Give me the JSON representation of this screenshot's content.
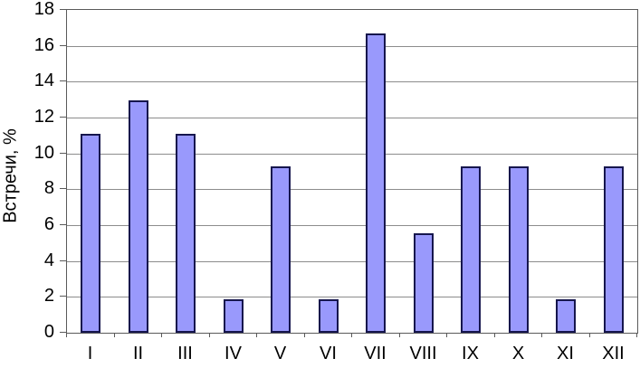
{
  "chart_data": {
    "type": "bar",
    "title": "",
    "xlabel": "",
    "ylabel": "Встречи, %",
    "categories": [
      "I",
      "II",
      "III",
      "IV",
      "V",
      "VI",
      "VII",
      "VIII",
      "IX",
      "X",
      "XI",
      "XII"
    ],
    "values": [
      11.11,
      12.96,
      11.11,
      1.85,
      9.26,
      1.85,
      16.67,
      5.56,
      9.26,
      9.26,
      1.85,
      9.26
    ],
    "ylim": [
      0,
      18
    ],
    "ytick_step": 2,
    "ytick_labels": [
      "0",
      "2",
      "4",
      "6",
      "8",
      "10",
      "12",
      "14",
      "16",
      "18"
    ],
    "grid": true,
    "legend_position": "none",
    "colors": {
      "bar_fill": "#9999FC",
      "bar_border": "#16164D",
      "gridline": "#8C8C8C",
      "plot_border": "#5A5A5A",
      "axis_tick": "#5A5A5A",
      "text": "#000000"
    }
  }
}
